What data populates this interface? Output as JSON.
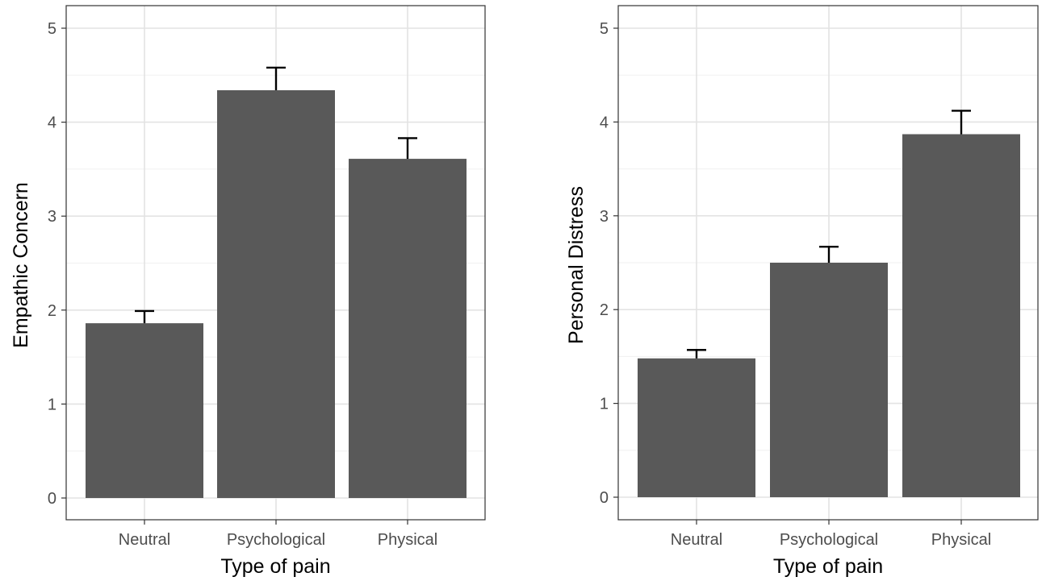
{
  "chart_data": [
    {
      "type": "bar",
      "title": "",
      "xlabel": "Type of pain",
      "ylabel": "Empathic Concern",
      "categories": [
        "Neutral",
        "Psychological",
        "Physical"
      ],
      "values": [
        1.86,
        4.34,
        3.61
      ],
      "error_upper": [
        1.99,
        4.58,
        3.83
      ],
      "ylim": [
        0,
        5
      ],
      "yticks": [
        0,
        1,
        2,
        3,
        4,
        5
      ],
      "grid": true,
      "bar_color": "#595959"
    },
    {
      "type": "bar",
      "title": "",
      "xlabel": "Type of pain",
      "ylabel": "Personal Distress",
      "categories": [
        "Neutral",
        "Psychological",
        "Physical"
      ],
      "values": [
        1.48,
        2.5,
        3.87
      ],
      "error_upper": [
        1.57,
        2.67,
        4.12
      ],
      "ylim": [
        0,
        5
      ],
      "yticks": [
        0,
        1,
        2,
        3,
        4,
        5
      ],
      "grid": true,
      "bar_color": "#595959"
    }
  ]
}
